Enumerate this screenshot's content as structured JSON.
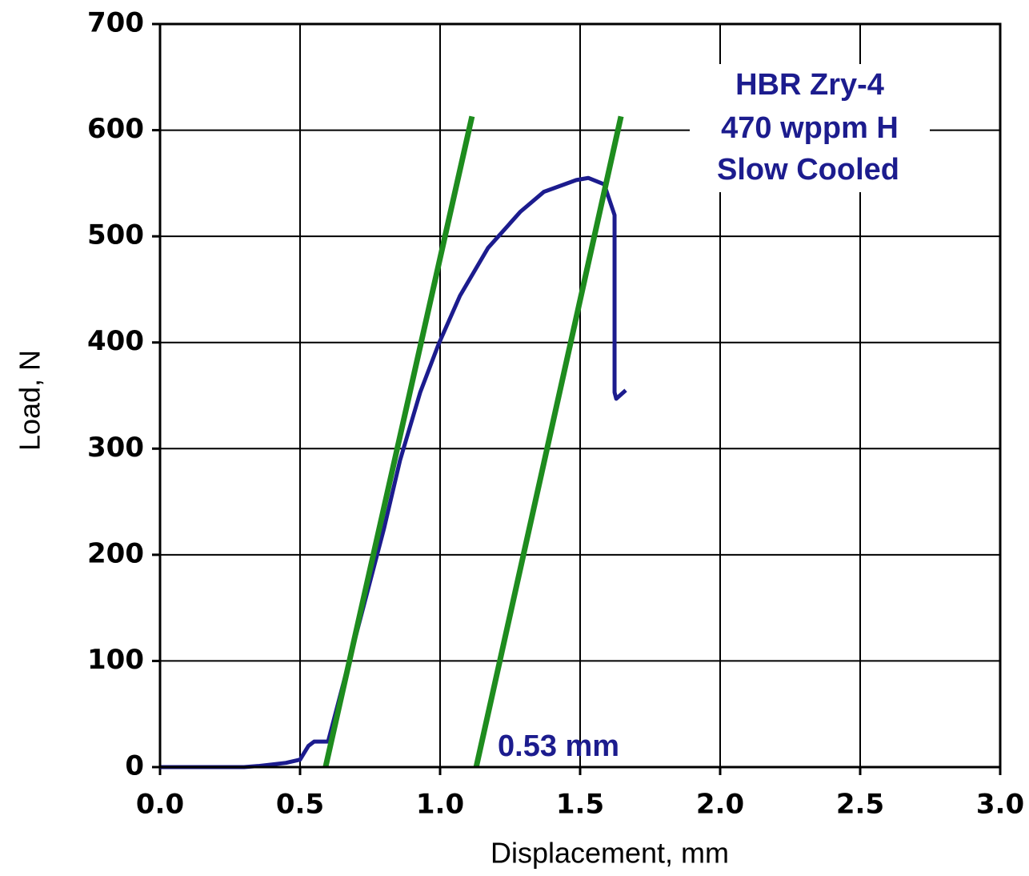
{
  "chart_data": {
    "type": "line",
    "xlabel": "Displacement, mm",
    "ylabel": "Load, N",
    "annotations": [
      "HBR Zry-4",
      "470 wppm H",
      "Slow Cooled",
      "0.53 mm"
    ],
    "xlim": [
      0,
      3
    ],
    "ylim": [
      0,
      700
    ],
    "xticks": [
      {
        "value": 0,
        "label": "0.0"
      },
      0.5,
      {
        "value": 1,
        "label": "1.0"
      },
      1.5,
      {
        "value": 2,
        "label": "2.0"
      },
      2.5,
      {
        "value": 3,
        "label": "3.0"
      }
    ],
    "yticks": [
      0,
      100,
      200,
      300,
      400,
      500,
      600,
      700
    ],
    "grid": true,
    "series": [
      {
        "color": "#1c1c8e",
        "x": [
          0,
          0.3,
          0.35,
          0.45,
          0.5,
          0.53,
          0.55,
          0.6,
          0.8,
          0.857,
          0.929,
          0.994,
          1.071,
          1.171,
          1.286,
          1.371,
          1.486,
          1.529,
          1.586,
          1.623,
          1.623,
          1.629,
          1.663
        ],
        "values": [
          0,
          0,
          1,
          4,
          7,
          20,
          24,
          24,
          225,
          289,
          353,
          398,
          444,
          489,
          523,
          542,
          553,
          555,
          549,
          520,
          353,
          347,
          355
        ]
      },
      {
        "color": "#1e8c1e",
        "x": [
          0.591,
          1.114
        ],
        "values": [
          0,
          613
        ]
      },
      {
        "color": "#1e8c1e",
        "x": [
          1.129,
          1.646
        ],
        "values": [
          0,
          613
        ]
      }
    ]
  }
}
